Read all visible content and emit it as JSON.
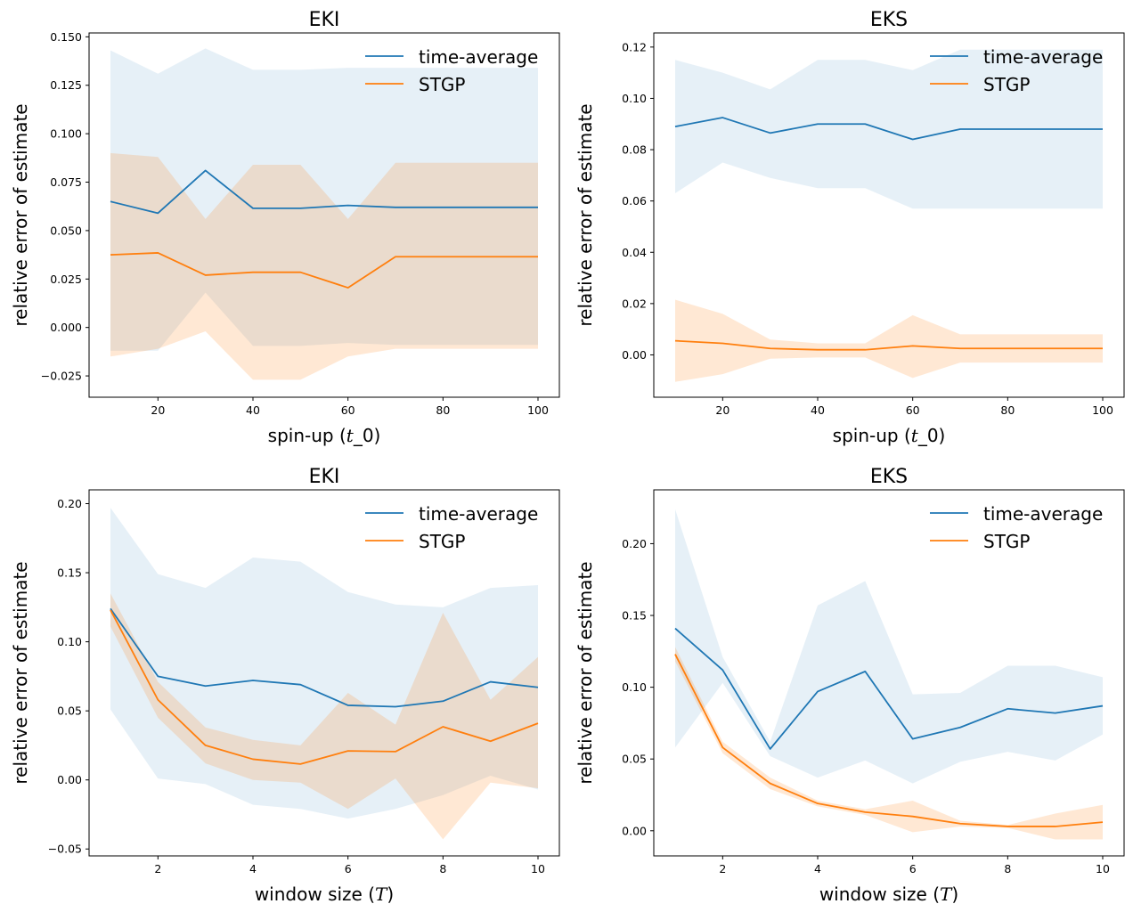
{
  "figure": {
    "colors": {
      "time_average": "#1f77b4",
      "stgp": "#ff7f0e",
      "time_average_band": "#1f77b4",
      "stgp_band": "#ff7f0e"
    }
  },
  "chart_data": [
    {
      "type": "line",
      "title": "EKI",
      "xlabel": "spin-up (t_0)",
      "xlabel_base": "spin-up (",
      "xlabel_math": "t",
      "xlabel_tail": "_0)",
      "ylabel": "relative error of estimate",
      "x": [
        10,
        20,
        30,
        40,
        50,
        60,
        70,
        80,
        90,
        100
      ],
      "xlim": [
        5.5,
        104.5
      ],
      "ylim": [
        -0.036,
        0.152
      ],
      "xticks": [
        20,
        40,
        60,
        80,
        100
      ],
      "xtick_labels": [
        "20",
        "40",
        "60",
        "80",
        "100"
      ],
      "yticks": [
        -0.025,
        0.0,
        0.025,
        0.05,
        0.075,
        0.1,
        0.125,
        0.15
      ],
      "ytick_labels": [
        "−0.025",
        "0.000",
        "0.025",
        "0.050",
        "0.075",
        "0.100",
        "0.125",
        "0.150"
      ],
      "legend_position": "top-right",
      "series": [
        {
          "name": "time-average",
          "values": [
            0.065,
            0.059,
            0.081,
            0.0615,
            0.0615,
            0.063,
            0.062,
            0.062,
            0.062,
            0.062
          ],
          "band_upper": [
            0.143,
            0.131,
            0.144,
            0.133,
            0.133,
            0.134,
            0.134,
            0.134,
            0.134,
            0.134
          ],
          "band_lower": [
            -0.012,
            -0.012,
            0.018,
            -0.0095,
            -0.0095,
            -0.008,
            -0.009,
            -0.009,
            -0.009,
            -0.009
          ]
        },
        {
          "name": "STGP",
          "values": [
            0.0375,
            0.0385,
            0.027,
            0.0285,
            0.0285,
            0.0205,
            0.0365,
            0.0365,
            0.0365,
            0.0365
          ],
          "band_upper": [
            0.09,
            0.088,
            0.056,
            0.084,
            0.084,
            0.056,
            0.085,
            0.085,
            0.085,
            0.085
          ],
          "band_lower": [
            -0.015,
            -0.011,
            -0.002,
            -0.027,
            -0.027,
            -0.015,
            -0.011,
            -0.011,
            -0.011,
            -0.011
          ]
        }
      ]
    },
    {
      "type": "line",
      "title": "EKS",
      "xlabel": "spin-up (t_0)",
      "xlabel_base": "spin-up (",
      "xlabel_math": "t",
      "xlabel_tail": "_0)",
      "ylabel": "relative error of estimate",
      "x": [
        10,
        20,
        30,
        40,
        50,
        60,
        70,
        80,
        90,
        100
      ],
      "xlim": [
        5.5,
        104.5
      ],
      "ylim": [
        -0.0165,
        0.1255
      ],
      "xticks": [
        20,
        40,
        60,
        80,
        100
      ],
      "xtick_labels": [
        "20",
        "40",
        "60",
        "80",
        "100"
      ],
      "yticks": [
        0.0,
        0.02,
        0.04,
        0.06,
        0.08,
        0.1,
        0.12
      ],
      "ytick_labels": [
        "0.00",
        "0.02",
        "0.04",
        "0.06",
        "0.08",
        "0.10",
        "0.12"
      ],
      "legend_position": "top-right",
      "series": [
        {
          "name": "time-average",
          "values": [
            0.089,
            0.0925,
            0.0865,
            0.09,
            0.09,
            0.084,
            0.088,
            0.088,
            0.088,
            0.088
          ],
          "band_upper": [
            0.115,
            0.11,
            0.1035,
            0.115,
            0.115,
            0.111,
            0.119,
            0.119,
            0.119,
            0.119
          ],
          "band_lower": [
            0.063,
            0.075,
            0.069,
            0.065,
            0.065,
            0.057,
            0.057,
            0.057,
            0.057,
            0.057
          ]
        },
        {
          "name": "STGP",
          "values": [
            0.0055,
            0.0045,
            0.0025,
            0.002,
            0.002,
            0.0035,
            0.0025,
            0.0025,
            0.0025,
            0.0025
          ],
          "band_upper": [
            0.0215,
            0.016,
            0.006,
            0.0045,
            0.0045,
            0.0155,
            0.008,
            0.008,
            0.008,
            0.008
          ],
          "band_lower": [
            -0.0105,
            -0.0075,
            -0.0015,
            -0.001,
            -0.001,
            -0.009,
            -0.003,
            -0.003,
            -0.003,
            -0.003
          ]
        }
      ]
    },
    {
      "type": "line",
      "title": "EKI",
      "xlabel": "window size (T)",
      "xlabel_base": "window size (",
      "xlabel_math": "T",
      "xlabel_tail": ")",
      "ylabel": "relative error of estimate",
      "x": [
        1,
        2,
        3,
        4,
        5,
        6,
        7,
        8,
        9,
        10
      ],
      "xlim": [
        0.55,
        10.45
      ],
      "ylim": [
        -0.055,
        0.21
      ],
      "xticks": [
        2,
        4,
        6,
        8,
        10
      ],
      "xtick_labels": [
        "2",
        "4",
        "6",
        "8",
        "10"
      ],
      "yticks": [
        -0.05,
        0.0,
        0.05,
        0.1,
        0.15,
        0.2
      ],
      "ytick_labels": [
        "−0.05",
        "0.00",
        "0.05",
        "0.10",
        "0.15",
        "0.20"
      ],
      "legend_position": "top-right",
      "series": [
        {
          "name": "time-average",
          "values": [
            0.124,
            0.075,
            0.068,
            0.072,
            0.069,
            0.054,
            0.053,
            0.057,
            0.071,
            0.067
          ],
          "band_upper": [
            0.197,
            0.149,
            0.139,
            0.161,
            0.158,
            0.136,
            0.127,
            0.125,
            0.139,
            0.141
          ],
          "band_lower": [
            0.051,
            0.001,
            -0.003,
            -0.018,
            -0.021,
            -0.028,
            -0.021,
            -0.011,
            0.003,
            -0.007
          ]
        },
        {
          "name": "STGP",
          "values": [
            0.123,
            0.058,
            0.025,
            0.015,
            0.0115,
            0.021,
            0.0205,
            0.0385,
            0.028,
            0.041
          ],
          "band_upper": [
            0.135,
            0.071,
            0.038,
            0.029,
            0.025,
            0.063,
            0.04,
            0.121,
            0.058,
            0.089
          ],
          "band_lower": [
            0.111,
            0.045,
            0.012,
            0.0,
            -0.002,
            -0.021,
            0.001,
            -0.043,
            -0.002,
            -0.006
          ]
        }
      ]
    },
    {
      "type": "line",
      "title": "EKS",
      "xlabel": "window size (T)",
      "xlabel_base": "window size (",
      "xlabel_math": "T",
      "xlabel_tail": ")",
      "ylabel": "relative error of estimate",
      "x": [
        1,
        2,
        3,
        4,
        5,
        6,
        7,
        8,
        9,
        10
      ],
      "xlim": [
        0.55,
        10.45
      ],
      "ylim": [
        -0.0175,
        0.2375
      ],
      "xticks": [
        2,
        4,
        6,
        8,
        10
      ],
      "xtick_labels": [
        "2",
        "4",
        "6",
        "8",
        "10"
      ],
      "yticks": [
        0.0,
        0.05,
        0.1,
        0.15,
        0.2
      ],
      "ytick_labels": [
        "0.00",
        "0.05",
        "0.10",
        "0.15",
        "0.20"
      ],
      "legend_position": "top-right",
      "series": [
        {
          "name": "time-average",
          "values": [
            0.141,
            0.112,
            0.057,
            0.097,
            0.111,
            0.064,
            0.072,
            0.085,
            0.082,
            0.087
          ],
          "band_upper": [
            0.224,
            0.121,
            0.062,
            0.157,
            0.174,
            0.095,
            0.096,
            0.115,
            0.115,
            0.107
          ],
          "band_lower": [
            0.058,
            0.103,
            0.052,
            0.037,
            0.049,
            0.033,
            0.048,
            0.055,
            0.049,
            0.067
          ]
        },
        {
          "name": "STGP",
          "values": [
            0.123,
            0.058,
            0.033,
            0.019,
            0.013,
            0.01,
            0.005,
            0.003,
            0.003,
            0.006
          ],
          "band_upper": [
            0.128,
            0.062,
            0.037,
            0.021,
            0.015,
            0.021,
            0.007,
            0.004,
            0.012,
            0.018
          ],
          "band_lower": [
            0.118,
            0.054,
            0.029,
            0.017,
            0.011,
            -0.001,
            0.003,
            0.002,
            -0.006,
            -0.006
          ]
        }
      ]
    }
  ]
}
